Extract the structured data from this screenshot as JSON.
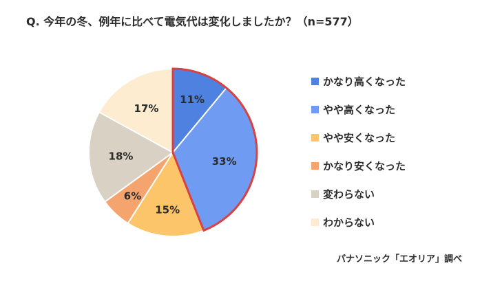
{
  "title": "Q. 今年の冬、例年に比べて電気代は変化しましたか？（n=577）",
  "source": "パナソニック「エオリア」調べ",
  "chart_data": {
    "type": "pie",
    "title": "Q. 今年の冬、例年に比べて電気代は変化しましたか？（n=577）",
    "labels": [
      "かなり高くなった",
      "やや高くなった",
      "やや安くなった",
      "かなり安くなった",
      "変わらない",
      "わからない"
    ],
    "values": [
      11,
      33,
      15,
      6,
      18,
      17
    ],
    "value_labels": [
      "11%",
      "33%",
      "15%",
      "6%",
      "18%",
      "17%"
    ],
    "colors": [
      "#4f81e0",
      "#6f9bf2",
      "#fcc56a",
      "#f6a46d",
      "#d8d1c4",
      "#fdeccf"
    ],
    "start_angle": "12 o'clock",
    "direction": "clockwise",
    "highlight": {
      "segments": [
        "かなり高くなった",
        "やや高くなった"
      ],
      "outline_color": "#d94040"
    },
    "legend_position": "right"
  }
}
